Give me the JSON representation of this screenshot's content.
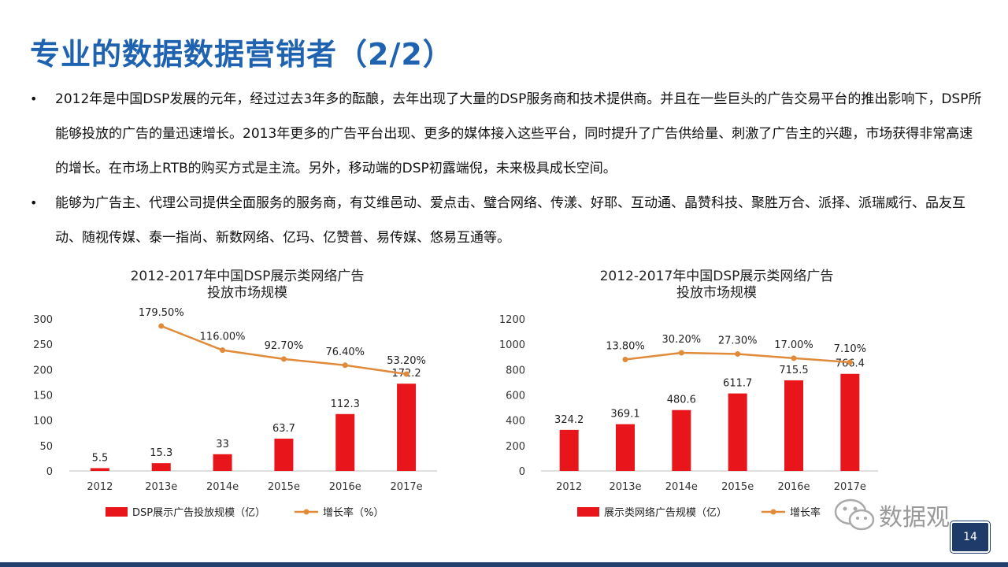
{
  "title": "专业的数据数据营销者（2/2）",
  "bullets": [
    "2012年是中国DSP发展的元年，经过过去3年多的酝酿，去年出现了大量的DSP服务商和技术提供商。并且在一些巨头的广告交易平台的推出影响下，DSP所能够投放的广告的量迅速增长。2013年更多的广告平台出现、更多的媒体接入这些平台，同时提升了广告供给量、刺激了广告主的兴趣，市场获得非常高速的增长。在市场上RTB的购买方式是主流。另外，移动端的DSP初露端倪，未来极具成长空间。",
    "能够为广告主、代理公司提供全面服务的服务商，有艾维邑动、爱点击、璧合网络、传漾、好耶、互动通、晶赞科技、聚胜万合、派择、派瑞威行、品友互动、随视传媒、泰一指尚、新数网络、亿玛、亿赞普、易传媒、悠易互通等。"
  ],
  "watermark": "数据观",
  "page_number": "14",
  "colors": {
    "title": "#1f63b0",
    "bar": "#e8161b",
    "line": "#e08a3a",
    "footer": "#24406e"
  },
  "chart_data": [
    {
      "type": "bar",
      "title_lines": [
        "2012-2017年中国DSP展示类网络广告",
        "投放市场规模"
      ],
      "categories": [
        "2012",
        "2013e",
        "2014e",
        "2015e",
        "2016e",
        "2017e"
      ],
      "series": [
        {
          "name": "DSP展示广告投放规模（亿）",
          "type": "bar",
          "values": [
            5.5,
            15.3,
            33,
            63.7,
            112.3,
            172.2
          ],
          "labels": [
            "5.5",
            "15.3",
            "33",
            "63.7",
            "112.3",
            "172.2"
          ]
        },
        {
          "name": "增长率（%）",
          "type": "line",
          "values": [
            null,
            179.5,
            116.0,
            92.7,
            76.4,
            53.2
          ],
          "labels": [
            "",
            "179.50%",
            "116.00%",
            "92.70%",
            "76.40%",
            "53.20%"
          ]
        }
      ],
      "yticks": [
        "0",
        "50",
        "100",
        "150",
        "200",
        "250",
        "300"
      ],
      "ylim": [
        0,
        300
      ],
      "legend": "bottom"
    },
    {
      "type": "bar",
      "title_lines": [
        "2012-2017年中国DSP展示类网络广告",
        "投放市场规模"
      ],
      "categories": [
        "2012",
        "2013e",
        "2014e",
        "2015e",
        "2016e",
        "2017e"
      ],
      "series": [
        {
          "name": "展示类网络广告规模（亿）",
          "type": "bar",
          "values": [
            324.2,
            369.1,
            480.6,
            611.7,
            715.5,
            766.4
          ],
          "labels": [
            "324.2",
            "369.1",
            "480.6",
            "611.7",
            "715.5",
            "766.4"
          ]
        },
        {
          "name": "增长率",
          "type": "line",
          "values": [
            null,
            13.8,
            30.2,
            27.3,
            17.0,
            7.1
          ],
          "labels": [
            "",
            "13.80%",
            "30.20%",
            "27.30%",
            "17.00%",
            "7.10%"
          ]
        }
      ],
      "yticks": [
        "0",
        "200",
        "400",
        "600",
        "800",
        "1000",
        "1200"
      ],
      "ylim": [
        0,
        1200
      ],
      "legend": "bottom"
    }
  ]
}
